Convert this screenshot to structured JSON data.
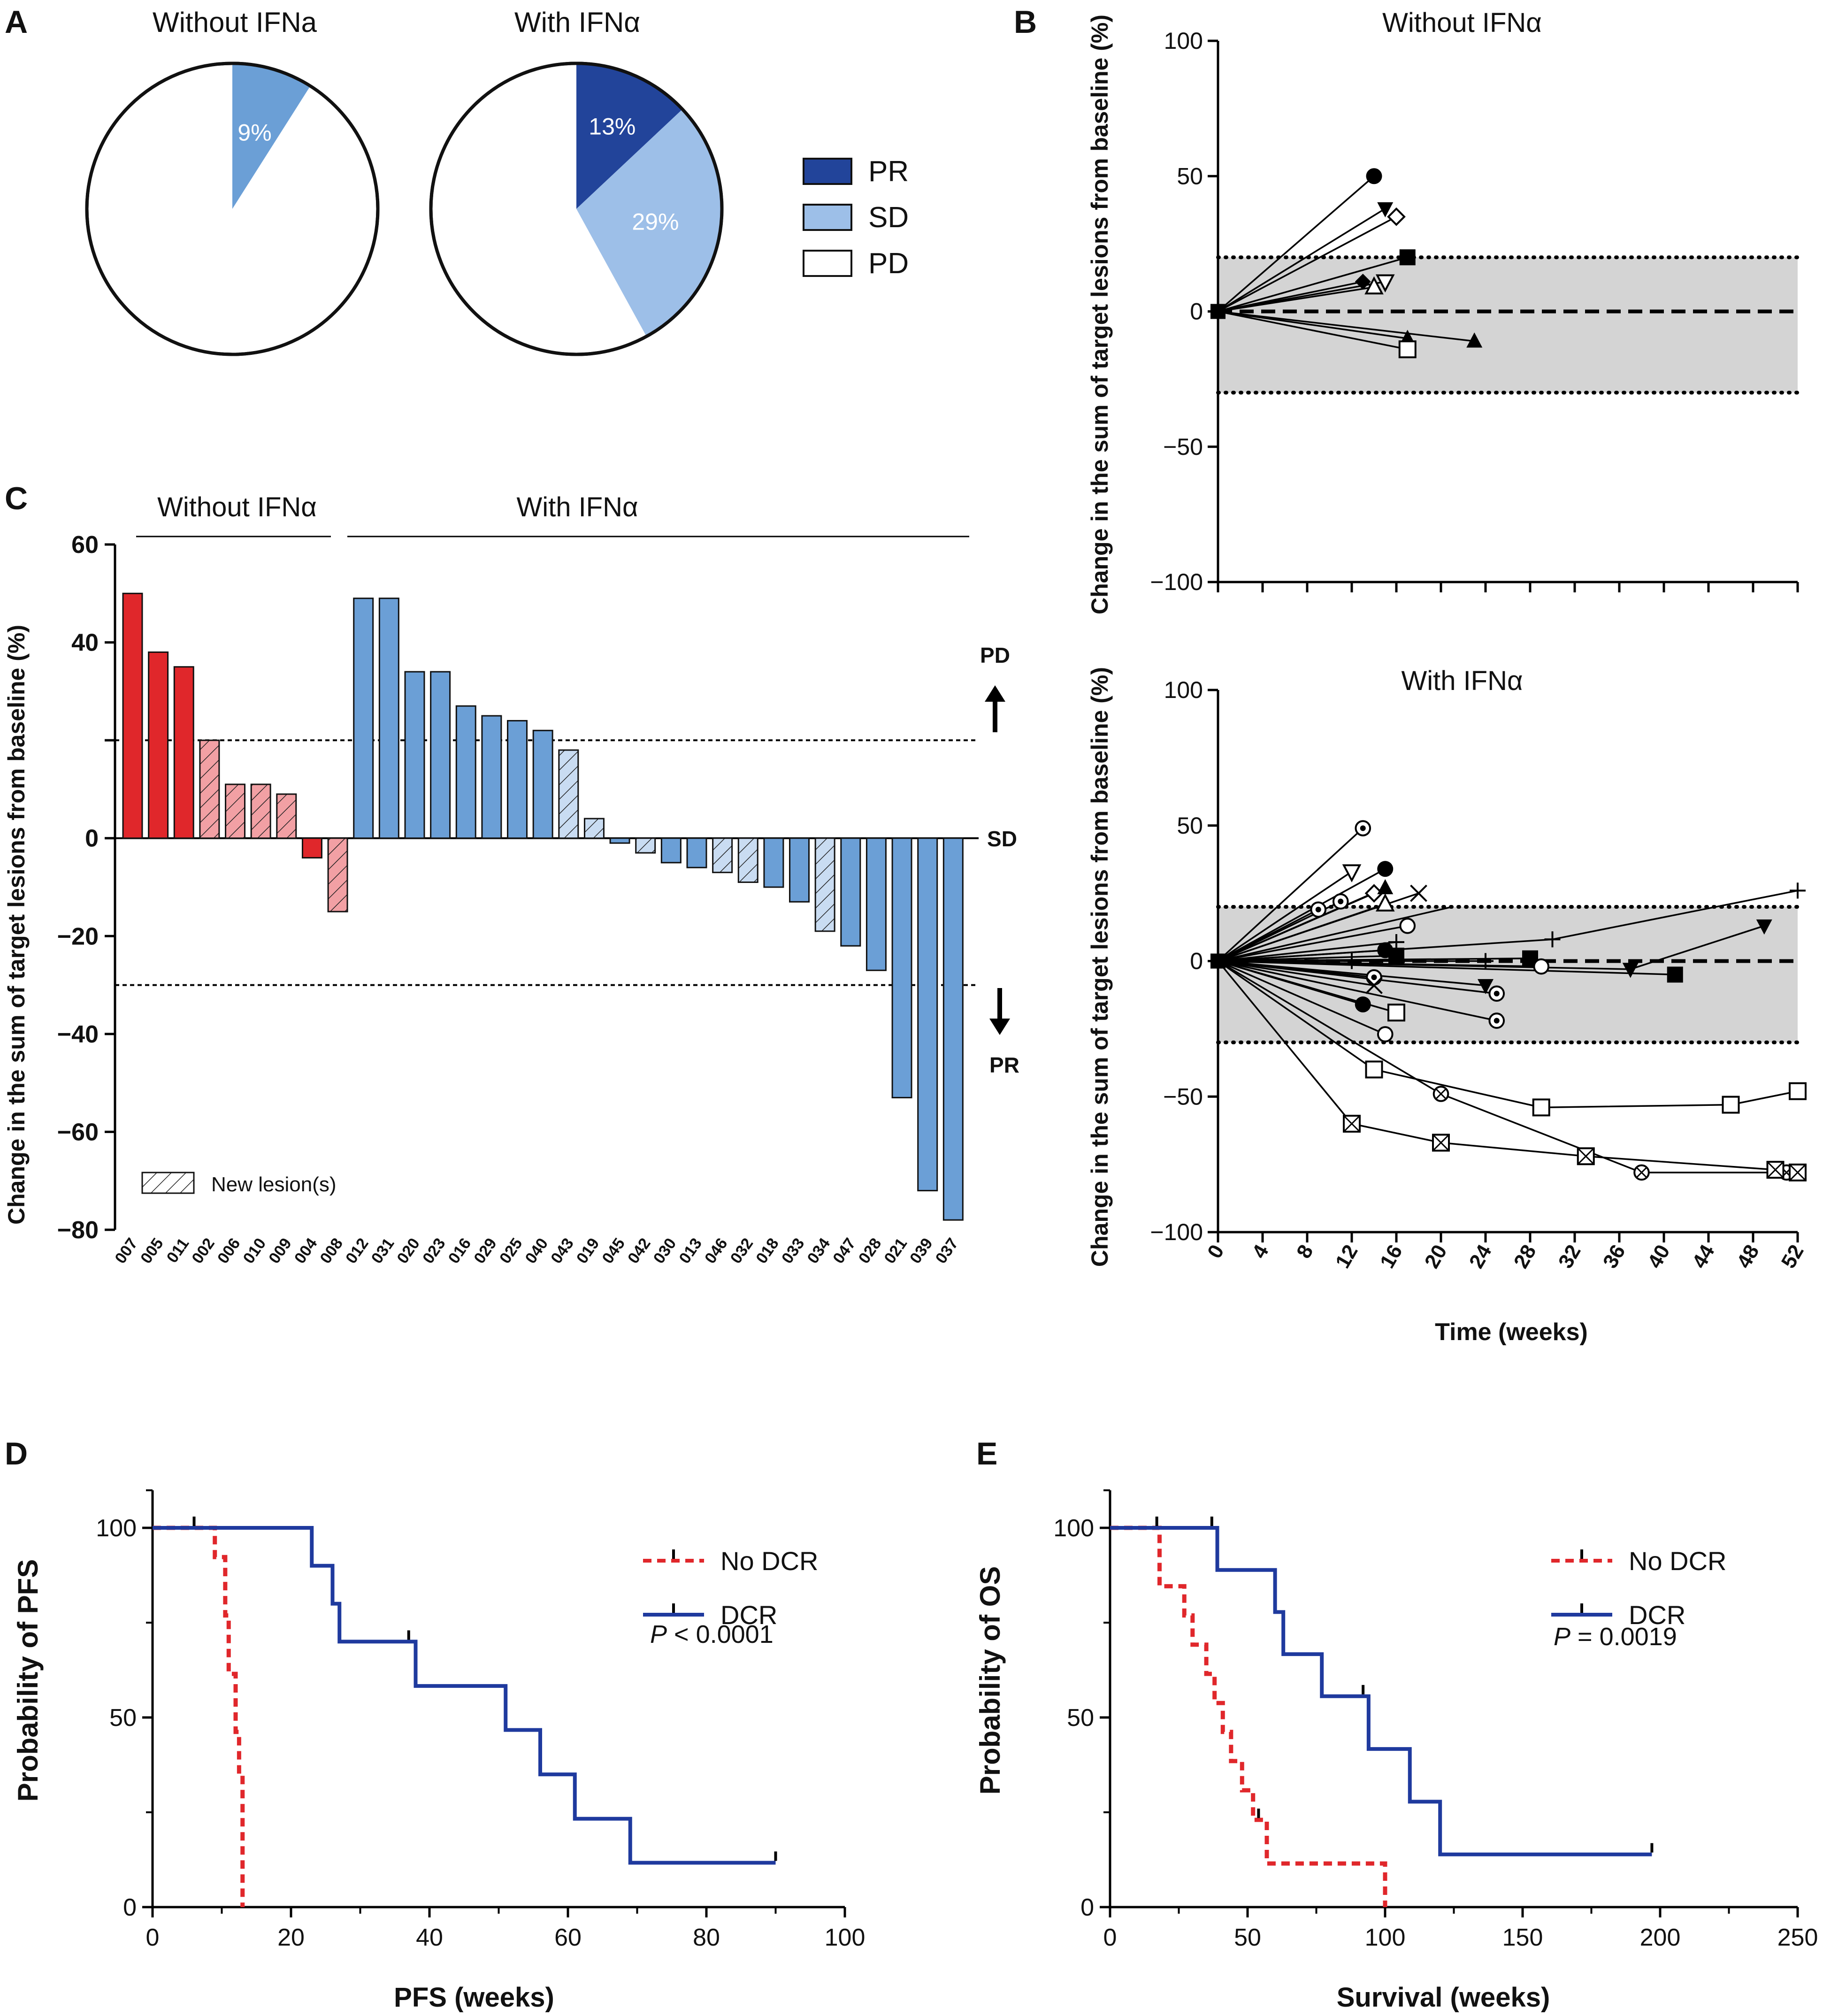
{
  "figure": {
    "panel_labels": [
      "A",
      "B",
      "C",
      "D",
      "E"
    ]
  },
  "colors": {
    "pr": "#22449a",
    "sd": "#9dbfe8",
    "sd_without": "#6b9fd6",
    "pd": "#ffffff",
    "red_solid": "#e0272b",
    "red_hatch": "#f2a0a4",
    "blue_solid": "#6b9fd6",
    "blue_hatch": "#c9dcf2",
    "band": "#d4d4d4",
    "km_red": "#e0272b",
    "km_blue": "#1f3a9e"
  },
  "chart_data": [
    {
      "id": "A1",
      "type": "pie",
      "title": "Without IFNa",
      "slices": [
        {
          "label": "PR",
          "value": 0
        },
        {
          "label": "SD",
          "value": 9,
          "text": "9%"
        },
        {
          "label": "PD",
          "value": 91
        }
      ]
    },
    {
      "id": "A2",
      "type": "pie",
      "title": "With IFNα",
      "slices": [
        {
          "label": "PR",
          "value": 13,
          "text": "13%"
        },
        {
          "label": "SD",
          "value": 29,
          "text": "29%"
        },
        {
          "label": "PD",
          "value": 58
        }
      ],
      "legend": [
        "PR",
        "SD",
        "PD"
      ]
    },
    {
      "id": "B1",
      "type": "line",
      "title": "Without IFNα",
      "ylabel": "Change in the sum of target lesions from baseline (%)",
      "ylim": [
        -100,
        100
      ],
      "yticks": [
        100,
        50,
        0,
        -50,
        -100
      ],
      "ytick_labels": [
        "100",
        "50",
        "0",
        "−50",
        "−100"
      ],
      "xlim": [
        0,
        52
      ],
      "band": [
        -30,
        20
      ],
      "ref_lines": [
        20,
        0,
        -30
      ],
      "series": [
        {
          "x": [
            0,
            14
          ],
          "y": [
            0,
            50
          ],
          "marker": "circle-filled"
        },
        {
          "x": [
            0,
            15
          ],
          "y": [
            0,
            38
          ],
          "marker": "tri-down-filled"
        },
        {
          "x": [
            0,
            16
          ],
          "y": [
            0,
            35
          ],
          "marker": "diamond-open"
        },
        {
          "x": [
            0,
            17
          ],
          "y": [
            0,
            20
          ],
          "marker": "square-filled"
        },
        {
          "x": [
            0,
            13
          ],
          "y": [
            0,
            11
          ],
          "marker": "diamond-filled"
        },
        {
          "x": [
            0,
            15
          ],
          "y": [
            0,
            11
          ],
          "marker": "tri-down-open"
        },
        {
          "x": [
            0,
            14
          ],
          "y": [
            0,
            9
          ],
          "marker": "tri-up-open"
        },
        {
          "x": [
            0,
            17
          ],
          "y": [
            0,
            -10
          ],
          "marker": "tri-up-filled"
        },
        {
          "x": [
            0,
            17
          ],
          "y": [
            0,
            -14
          ],
          "marker": "square-open"
        },
        {
          "x": [
            0,
            23
          ],
          "y": [
            0,
            -11
          ],
          "marker": "tri-up-filled"
        }
      ]
    },
    {
      "id": "B2",
      "type": "line",
      "title": "With IFNα",
      "ylabel": "Change in the sum of target lesions from baseline (%)",
      "xlabel": "Time (weeks)",
      "ylim": [
        -100,
        100
      ],
      "yticks": [
        100,
        50,
        0,
        -50,
        -100
      ],
      "ytick_labels": [
        "100",
        "50",
        "0",
        "−50",
        "−100"
      ],
      "xlim": [
        0,
        52
      ],
      "xticks": [
        0,
        4,
        8,
        12,
        16,
        20,
        24,
        28,
        32,
        36,
        40,
        44,
        48,
        52
      ],
      "band": [
        -30,
        20
      ],
      "ref_lines": [
        20,
        0,
        -30
      ],
      "series": [
        {
          "x": [
            0,
            13
          ],
          "y": [
            0,
            49
          ],
          "marker": "circle-dot"
        },
        {
          "x": [
            0,
            12
          ],
          "y": [
            0,
            33
          ],
          "marker": "tri-down-open"
        },
        {
          "x": [
            0,
            15
          ],
          "y": [
            0,
            34
          ],
          "marker": "circle-filled"
        },
        {
          "x": [
            0,
            14
          ],
          "y": [
            0,
            25
          ],
          "marker": "diamond-open"
        },
        {
          "x": [
            0,
            15
          ],
          "y": [
            0,
            27
          ],
          "marker": "tri-up-filled"
        },
        {
          "x": [
            0,
            18
          ],
          "y": [
            0,
            25
          ],
          "marker": "x"
        },
        {
          "x": [
            0,
            15
          ],
          "y": [
            0,
            21
          ],
          "marker": "tri-up-open"
        },
        {
          "x": [
            0,
            9
          ],
          "y": [
            0,
            19
          ],
          "marker": "circle-dot"
        },
        {
          "x": [
            0,
            11
          ],
          "y": [
            0,
            22
          ],
          "marker": "circle-dot"
        },
        {
          "x": [
            0,
            21
          ],
          "y": [
            0,
            20
          ],
          "marker": "none"
        },
        {
          "x": [
            0,
            17
          ],
          "y": [
            0,
            13
          ],
          "marker": "circle-open"
        },
        {
          "x": [
            0,
            16
          ],
          "y": [
            0,
            7
          ],
          "marker": "plus"
        },
        {
          "x": [
            0,
            15
          ],
          "y": [
            0,
            4
          ],
          "marker": "circle-filled"
        },
        {
          "x": [
            0,
            16
          ],
          "y": [
            0,
            2
          ],
          "marker": "square-filled"
        },
        {
          "x": [
            0,
            30,
            52
          ],
          "y": [
            0,
            8,
            26
          ],
          "marker": "plus"
        },
        {
          "x": [
            0,
            28
          ],
          "y": [
            0,
            1
          ],
          "marker": "square-filled"
        },
        {
          "x": [
            0,
            24
          ],
          "y": [
            0,
            0
          ],
          "marker": "plus"
        },
        {
          "x": [
            0,
            12
          ],
          "y": [
            0,
            0
          ],
          "marker": "plus"
        },
        {
          "x": [
            0,
            37,
            49
          ],
          "y": [
            0,
            -3,
            13
          ],
          "marker": "tri-down-filled"
        },
        {
          "x": [
            0,
            41
          ],
          "y": [
            0,
            -5
          ],
          "marker": "square-filled"
        },
        {
          "x": [
            0,
            29
          ],
          "y": [
            0,
            -2
          ],
          "marker": "circle-open"
        },
        {
          "x": [
            0,
            24
          ],
          "y": [
            0,
            -9
          ],
          "marker": "tri-down-filled"
        },
        {
          "x": [
            0,
            25
          ],
          "y": [
            0,
            -12
          ],
          "marker": "circle-dot"
        },
        {
          "x": [
            0,
            14
          ],
          "y": [
            0,
            -6
          ],
          "marker": "circle-dot"
        },
        {
          "x": [
            0,
            14
          ],
          "y": [
            0,
            -9
          ],
          "marker": "x"
        },
        {
          "x": [
            0,
            13
          ],
          "y": [
            0,
            -16
          ],
          "marker": "circle-filled"
        },
        {
          "x": [
            0,
            16
          ],
          "y": [
            0,
            -19
          ],
          "marker": "square-open"
        },
        {
          "x": [
            0,
            15
          ],
          "y": [
            0,
            -27
          ],
          "marker": "circle-open"
        },
        {
          "x": [
            0,
            25
          ],
          "y": [
            0,
            -22
          ],
          "marker": "circle-dot"
        },
        {
          "x": [
            0,
            14,
            29,
            46,
            52
          ],
          "y": [
            0,
            -40,
            -54,
            -53,
            -48
          ],
          "marker": "square-open"
        },
        {
          "x": [
            0,
            20,
            38,
            51
          ],
          "y": [
            0,
            -49,
            -78,
            -78
          ],
          "marker": "circle-x"
        },
        {
          "x": [
            0,
            12,
            20,
            33,
            50,
            52
          ],
          "y": [
            0,
            -60,
            -67,
            -72,
            -77,
            -78
          ],
          "marker": "square-x"
        }
      ]
    },
    {
      "id": "C",
      "type": "bar",
      "title": "",
      "group_labels": [
        "Without IFNα",
        "With IFNα"
      ],
      "ylabel": "Change in the sum of target lesions from baseline (%)",
      "ylim": [
        -80,
        60
      ],
      "yticks": [
        60,
        40,
        0,
        -20,
        -40,
        -60,
        -80
      ],
      "ytick_labels": [
        "60",
        "40",
        "0",
        "−20",
        "−40",
        "−60",
        "−80"
      ],
      "ref_lines": [
        20,
        -30
      ],
      "annotations": {
        "pd": "PD",
        "sd": "SD",
        "pr": "PR",
        "legend": "New lesion(s)"
      },
      "categories": [
        "007",
        "005",
        "011",
        "002",
        "006",
        "010",
        "009",
        "004",
        "008",
        "012",
        "031",
        "020",
        "023",
        "016",
        "029",
        "025",
        "040",
        "043",
        "019",
        "045",
        "042",
        "030",
        "013",
        "046",
        "032",
        "018",
        "033",
        "034",
        "047",
        "028",
        "021",
        "039",
        "037"
      ],
      "values": [
        50,
        38,
        35,
        20,
        11,
        11,
        9,
        -4,
        -15,
        49,
        49,
        34,
        34,
        27,
        25,
        24,
        22,
        18,
        4,
        -1,
        -3,
        -5,
        -6,
        -7,
        -9,
        -10,
        -13,
        -19,
        -22,
        -27,
        -53,
        -72,
        -78
      ],
      "group": [
        "w",
        "w",
        "w",
        "w",
        "w",
        "w",
        "w",
        "w",
        "w",
        "i",
        "i",
        "i",
        "i",
        "i",
        "i",
        "i",
        "i",
        "i",
        "i",
        "i",
        "i",
        "i",
        "i",
        "i",
        "i",
        "i",
        "i",
        "i",
        "i",
        "i",
        "i",
        "i",
        "i"
      ],
      "new_lesion": [
        false,
        false,
        false,
        true,
        true,
        true,
        true,
        false,
        true,
        false,
        false,
        false,
        false,
        false,
        false,
        false,
        false,
        true,
        true,
        false,
        true,
        false,
        false,
        true,
        true,
        false,
        false,
        true,
        false,
        false,
        false,
        false,
        false
      ]
    },
    {
      "id": "D",
      "type": "line",
      "subtype": "kaplan-meier",
      "xlabel": "PFS (weeks)",
      "ylabel": "Probability of PFS",
      "xlim": [
        0,
        100
      ],
      "ylim": [
        0,
        100
      ],
      "xticks": [
        0,
        20,
        40,
        60,
        80,
        100
      ],
      "yticks": [
        0,
        50,
        100
      ],
      "pvalue": {
        "italic": "P",
        "text": " < 0.0001"
      },
      "series": [
        {
          "name": "No DCR",
          "style": "dashed",
          "color": "#e0272b",
          "x": [
            0,
            9,
            9,
            10.5,
            10.5,
            11,
            11,
            12,
            12,
            12.5,
            12.5,
            13,
            13
          ],
          "y": [
            100,
            100,
            92.3,
            92.3,
            76.9,
            76.9,
            61.5,
            61.5,
            46.2,
            46.2,
            35,
            35,
            0
          ],
          "censor": [
            {
              "x": 6,
              "y": 100
            }
          ]
        },
        {
          "name": "DCR",
          "style": "solid",
          "color": "#1f3a9e",
          "x": [
            0,
            23,
            23,
            26,
            26,
            27,
            27,
            38,
            38,
            51,
            51,
            56,
            56,
            61,
            61,
            69,
            69,
            90
          ],
          "y": [
            100,
            100,
            90,
            90,
            80,
            80,
            70,
            70,
            58.3,
            58.3,
            46.7,
            46.7,
            35,
            35,
            23.3,
            23.3,
            11.7,
            11.7
          ],
          "censor": [
            {
              "x": 37,
              "y": 70
            },
            {
              "x": 90,
              "y": 11.7
            }
          ]
        }
      ]
    },
    {
      "id": "E",
      "type": "line",
      "subtype": "kaplan-meier",
      "xlabel": "Survival (weeks)",
      "ylabel": "Probability of OS",
      "xlim": [
        0,
        250
      ],
      "ylim": [
        0,
        100
      ],
      "xticks": [
        0,
        50,
        100,
        150,
        200,
        250
      ],
      "yticks": [
        0,
        50,
        100
      ],
      "pvalue": {
        "italic": "P",
        "text": " = 0.0019"
      },
      "series": [
        {
          "name": "No DCR",
          "style": "dashed",
          "color": "#e0272b",
          "x": [
            0,
            18,
            18,
            27,
            27,
            30,
            30,
            35,
            35,
            38,
            38,
            41,
            41,
            44,
            44,
            48,
            48,
            52,
            52,
            57,
            57,
            100,
            100
          ],
          "y": [
            100,
            100,
            84.6,
            84.6,
            76.9,
            76.9,
            69.2,
            69.2,
            61.5,
            61.5,
            53.8,
            53.8,
            46.2,
            46.2,
            38.5,
            38.5,
            30.8,
            30.8,
            23,
            23,
            11.5,
            11.5,
            0
          ],
          "censor": [
            {
              "x": 17,
              "y": 100
            },
            {
              "x": 54,
              "y": 23
            }
          ]
        },
        {
          "name": "DCR",
          "style": "solid",
          "color": "#1f3a9e",
          "x": [
            0,
            39,
            39,
            60,
            60,
            63,
            63,
            77,
            77,
            94,
            94,
            109,
            109,
            120,
            120,
            197
          ],
          "y": [
            100,
            100,
            88.9,
            88.9,
            77.8,
            77.8,
            66.7,
            66.7,
            55.6,
            55.6,
            41.7,
            41.7,
            27.8,
            27.8,
            13.9,
            13.9
          ],
          "censor": [
            {
              "x": 37,
              "y": 100
            },
            {
              "x": 92,
              "y": 55.6
            },
            {
              "x": 197,
              "y": 13.9
            }
          ]
        }
      ]
    }
  ]
}
